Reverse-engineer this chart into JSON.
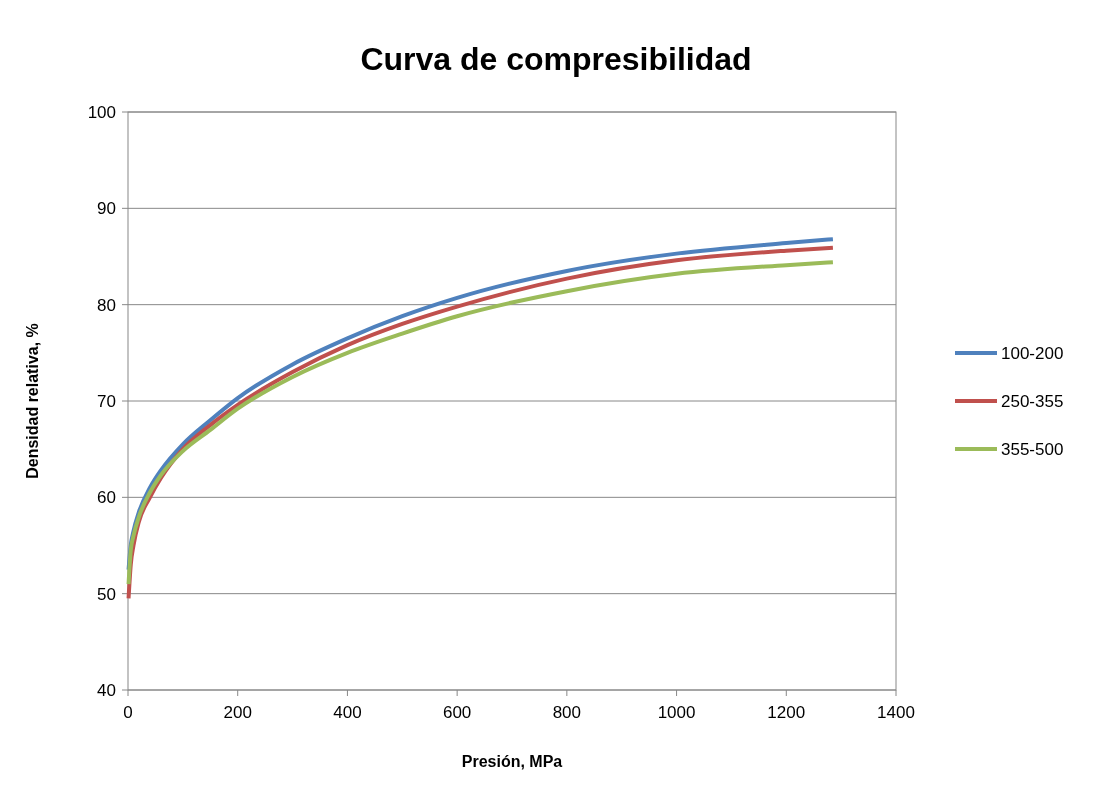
{
  "chart_data": {
    "type": "line",
    "title": "Curva de compresibilidad",
    "xlabel": "Presión, MPa",
    "ylabel": "Densidad relativa, %",
    "x": [
      1,
      5,
      10,
      20,
      40,
      60,
      100,
      150,
      200,
      300,
      400,
      500,
      600,
      800,
      1000,
      1200,
      1285
    ],
    "series": [
      {
        "name": "100-200",
        "color": "#4f81bd",
        "values": [
          52.5,
          55,
          56.5,
          58.5,
          61,
          62.8,
          65.5,
          68,
          70.3,
          73.8,
          76.5,
          78.8,
          80.7,
          83.5,
          85.3,
          86.4,
          86.8
        ]
      },
      {
        "name": "250-355",
        "color": "#c0504d",
        "values": [
          49.5,
          53,
          55,
          57.5,
          60,
          62,
          65,
          67.5,
          69.6,
          73,
          75.8,
          78,
          79.8,
          82.7,
          84.6,
          85.6,
          85.9
        ]
      },
      {
        "name": "355-500",
        "color": "#9bbb59",
        "values": [
          51,
          54.5,
          56,
          58,
          60.5,
          62.3,
          64.8,
          67,
          69.2,
          72.5,
          75,
          77,
          78.8,
          81.4,
          83.2,
          84.1,
          84.4
        ]
      }
    ],
    "xlim": [
      0,
      1400
    ],
    "xticks": [
      0,
      200,
      400,
      600,
      800,
      1000,
      1200,
      1400
    ],
    "ylim": [
      40,
      100
    ],
    "yticks": [
      40,
      50,
      60,
      70,
      80,
      90,
      100
    ],
    "grid": "y",
    "legend": "right",
    "marker": "none",
    "line_style": "solid"
  }
}
